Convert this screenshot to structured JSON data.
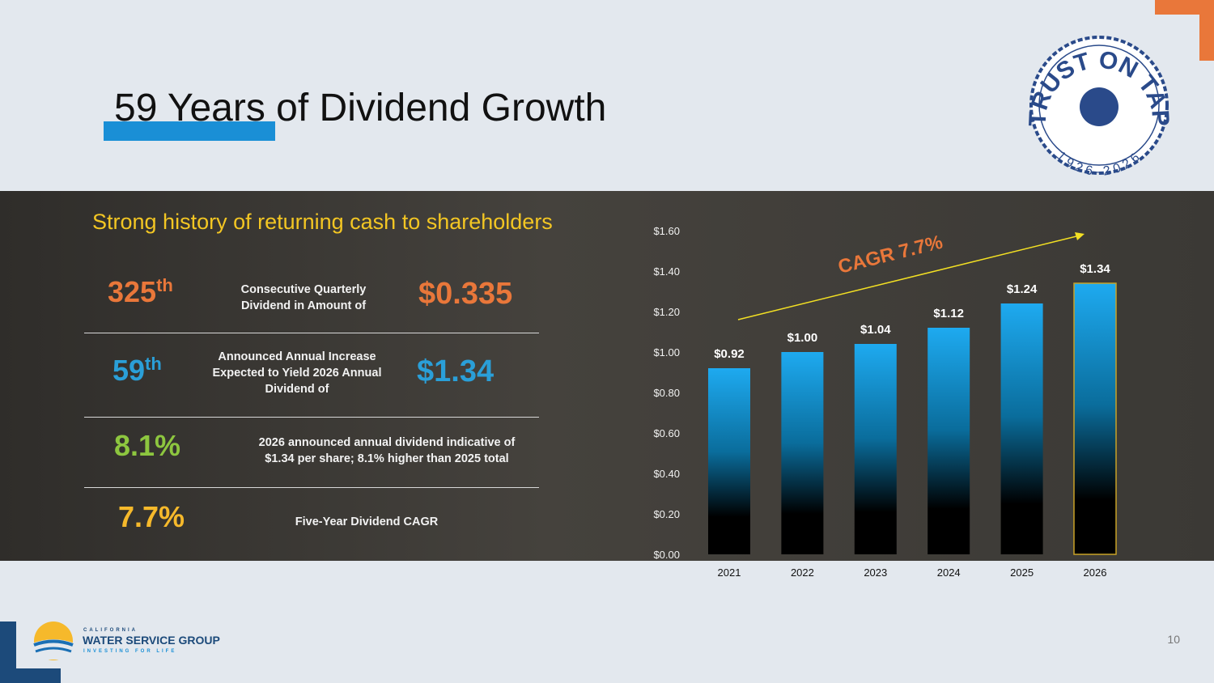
{
  "title": "59 Years of Dividend Growth",
  "subtitle": "Strong history of returning cash to shareholders",
  "stats": [
    {
      "figure": "325",
      "suffix": "th",
      "text": "Consecutive Quarterly Dividend in Amount of",
      "amount": "$0.335"
    },
    {
      "figure": "59",
      "suffix": "th",
      "text": "Announced Annual Increase Expected to Yield 2026 Annual Dividend of",
      "amount": "$1.34"
    },
    {
      "figure": "8.1%",
      "text": "2026 announced annual dividend indicative of $1.34 per share; 8.1% higher than 2025 total"
    },
    {
      "figure": "7.7%",
      "text": "Five-Year Dividend CAGR"
    }
  ],
  "badge": {
    "text": "TRUST ON TAP",
    "years": "1926-2026"
  },
  "footer": {
    "logo_top": "CALIFORNIA",
    "logo_main": "WATER SERVICE GROUP",
    "logo_tag": "INVESTING FOR LIFE",
    "page": "10"
  },
  "chart_data": {
    "type": "bar",
    "categories": [
      "2021",
      "2022",
      "2023",
      "2024",
      "2025",
      "2026"
    ],
    "values": [
      0.92,
      1.0,
      1.04,
      1.12,
      1.24,
      1.34
    ],
    "value_labels": [
      "$0.92",
      "$1.00",
      "$1.04",
      "$1.12",
      "$1.24",
      "$1.34"
    ],
    "ylim": [
      0,
      1.6
    ],
    "yticks": [
      {
        "value": 0,
        "label": "$0.00"
      },
      {
        "value": 0.2,
        "label": "$0.20"
      },
      {
        "value": 0.4,
        "label": "$0.40"
      },
      {
        "value": 0.6,
        "label": "$0.60"
      },
      {
        "value": 0.8,
        "label": "$0.80"
      },
      {
        "value": 1.0,
        "label": "$1.00"
      },
      {
        "value": 1.2,
        "label": "$1.20"
      },
      {
        "value": 1.4,
        "label": "$1.40"
      },
      {
        "value": 1.6,
        "label": "$1.60"
      }
    ],
    "annotation": "CAGR 7.7%",
    "grid": false
  }
}
